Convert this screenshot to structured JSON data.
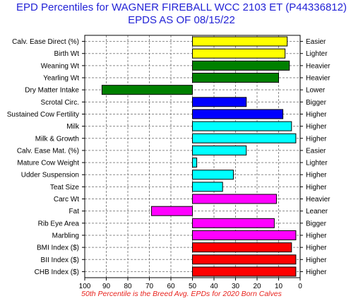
{
  "chart_data": {
    "type": "bar",
    "title": "EPD Percentiles for WAGNER FIREBALL WCC 2103 ET (P44336812)",
    "subtitle": "EPDS AS OF 08/15/22",
    "footnote": "50th Percentile is the Breed Avg. EPDs for 2020 Born Calves",
    "xlim": [
      100,
      0
    ],
    "x_reversed": true,
    "baseline": 50,
    "xticks": [
      100,
      90,
      80,
      70,
      60,
      50,
      40,
      30,
      20,
      10,
      0
    ],
    "grid": true,
    "categories": [
      "Calv. Ease Direct (%)",
      "Birth Wt",
      "Weaning Wt",
      "Yearling Wt",
      "Dry Matter Intake",
      "Scrotal Circ.",
      "Sustained Cow Fertility",
      "Milk",
      "Milk & Growth",
      "Calv. Ease Mat. (%)",
      "Mature Cow Weight",
      "Udder Suspension",
      "Teat Size",
      "Carc Wt",
      "Fat",
      "Rib Eye Area",
      "Marbling",
      "BMI Index ($)",
      "BII Index ($)",
      "CHB Index ($)"
    ],
    "values": [
      6,
      7,
      5,
      10,
      92,
      25,
      8,
      4,
      2,
      25,
      48,
      31,
      36,
      11,
      69,
      12,
      2,
      4,
      2,
      2
    ],
    "directions": [
      "Easier",
      "Lighter",
      "Heavier",
      "Heavier",
      "Lower",
      "Bigger",
      "Higher",
      "Higher",
      "Higher",
      "Easier",
      "Lighter",
      "Higher",
      "Higher",
      "Heavier",
      "Leaner",
      "Bigger",
      "Higher",
      "Higher",
      "Higher",
      "Higher"
    ],
    "colors": [
      "#ffff00",
      "#ffff00",
      "#008000",
      "#008000",
      "#008000",
      "#0000ff",
      "#0000ff",
      "#00ffff",
      "#00ffff",
      "#00ffff",
      "#00ffff",
      "#00ffff",
      "#00ffff",
      "#ff00ff",
      "#ff00ff",
      "#ff00ff",
      "#ff00ff",
      "#ff0000",
      "#ff0000",
      "#ff0000"
    ]
  }
}
